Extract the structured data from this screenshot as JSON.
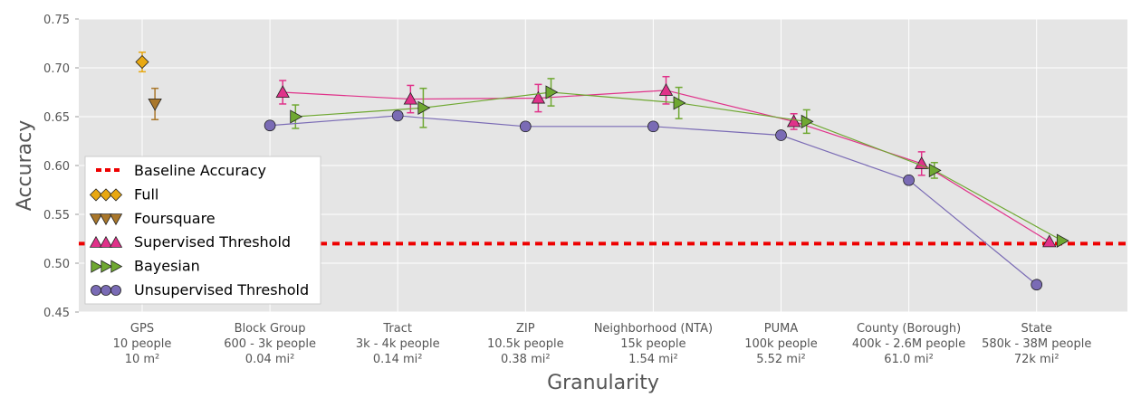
{
  "chart_data": {
    "type": "line",
    "title": "",
    "xlabel": "Granularity",
    "ylabel": "Accuracy",
    "ylim": [
      0.45,
      0.75
    ],
    "yticks": [
      0.45,
      0.5,
      0.55,
      0.6,
      0.65,
      0.7,
      0.75
    ],
    "ytick_labels": [
      "0.45",
      "0.50",
      "0.55",
      "0.60",
      "0.65",
      "0.70",
      "0.75"
    ],
    "grid": true,
    "legend_position": "center-left",
    "categories": [
      {
        "name": "GPS",
        "people": "10 people",
        "area": "10 m²"
      },
      {
        "name": "Block Group",
        "people": "600 - 3k people",
        "area": "0.04 mi²"
      },
      {
        "name": "Tract",
        "people": "3k - 4k people",
        "area": "0.14 mi²"
      },
      {
        "name": "ZIP",
        "people": "10.5k people",
        "area": "0.38 mi²"
      },
      {
        "name": "Neighborhood (NTA)",
        "people": "15k people",
        "area": "1.54 mi²"
      },
      {
        "name": "PUMA",
        "people": "100k people",
        "area": "5.52 mi²"
      },
      {
        "name": "County (Borough)",
        "people": "400k - 2.6M people",
        "area": "61.0 mi²"
      },
      {
        "name": "State",
        "people": "580k - 38M people",
        "area": "72k mi²"
      }
    ],
    "baseline": {
      "name": "Baseline Accuracy",
      "value": 0.52,
      "color": "#ee0000"
    },
    "series": [
      {
        "name": "Full",
        "marker": "diamond",
        "color": "#e8a812",
        "line": false,
        "offset": 0.0,
        "points": [
          {
            "i": 0,
            "y": 0.706,
            "err": 0.01
          }
        ]
      },
      {
        "name": "Foursquare",
        "marker": "triangle-down",
        "color": "#a9772b",
        "line": false,
        "offset": 0.1,
        "points": [
          {
            "i": 0,
            "y": 0.663,
            "err": 0.016
          }
        ]
      },
      {
        "name": "Supervised Threshold",
        "marker": "triangle-up",
        "color": "#e0328a",
        "line": true,
        "offset": 0.1,
        "points": [
          {
            "i": 1,
            "y": 0.675,
            "err": 0.012
          },
          {
            "i": 2,
            "y": 0.668,
            "err": 0.014
          },
          {
            "i": 3,
            "y": 0.669,
            "err": 0.014
          },
          {
            "i": 4,
            "y": 0.677,
            "err": 0.014
          },
          {
            "i": 5,
            "y": 0.645,
            "err": 0.008
          },
          {
            "i": 6,
            "y": 0.602,
            "err": 0.012
          },
          {
            "i": 7,
            "y": 0.522,
            "err": 0.0
          }
        ]
      },
      {
        "name": "Bayesian",
        "marker": "triangle-right",
        "color": "#6fa832",
        "line": true,
        "offset": 0.2,
        "points": [
          {
            "i": 1,
            "y": 0.65,
            "err": 0.012
          },
          {
            "i": 2,
            "y": 0.659,
            "err": 0.02
          },
          {
            "i": 3,
            "y": 0.675,
            "err": 0.014
          },
          {
            "i": 4,
            "y": 0.664,
            "err": 0.016
          },
          {
            "i": 5,
            "y": 0.645,
            "err": 0.012
          },
          {
            "i": 6,
            "y": 0.595,
            "err": 0.008
          },
          {
            "i": 7,
            "y": 0.523,
            "err": 0.0
          }
        ]
      },
      {
        "name": "Unsupervised Threshold",
        "marker": "circle",
        "color": "#7a6bb5",
        "line": true,
        "offset": 0.0,
        "points": [
          {
            "i": 1,
            "y": 0.641,
            "err": 0.0
          },
          {
            "i": 2,
            "y": 0.651,
            "err": 0.0
          },
          {
            "i": 3,
            "y": 0.64,
            "err": 0.0
          },
          {
            "i": 4,
            "y": 0.64,
            "err": 0.0
          },
          {
            "i": 5,
            "y": 0.631,
            "err": 0.0
          },
          {
            "i": 6,
            "y": 0.585,
            "err": 0.0
          },
          {
            "i": 7,
            "y": 0.478,
            "err": 0.0
          }
        ]
      }
    ]
  }
}
